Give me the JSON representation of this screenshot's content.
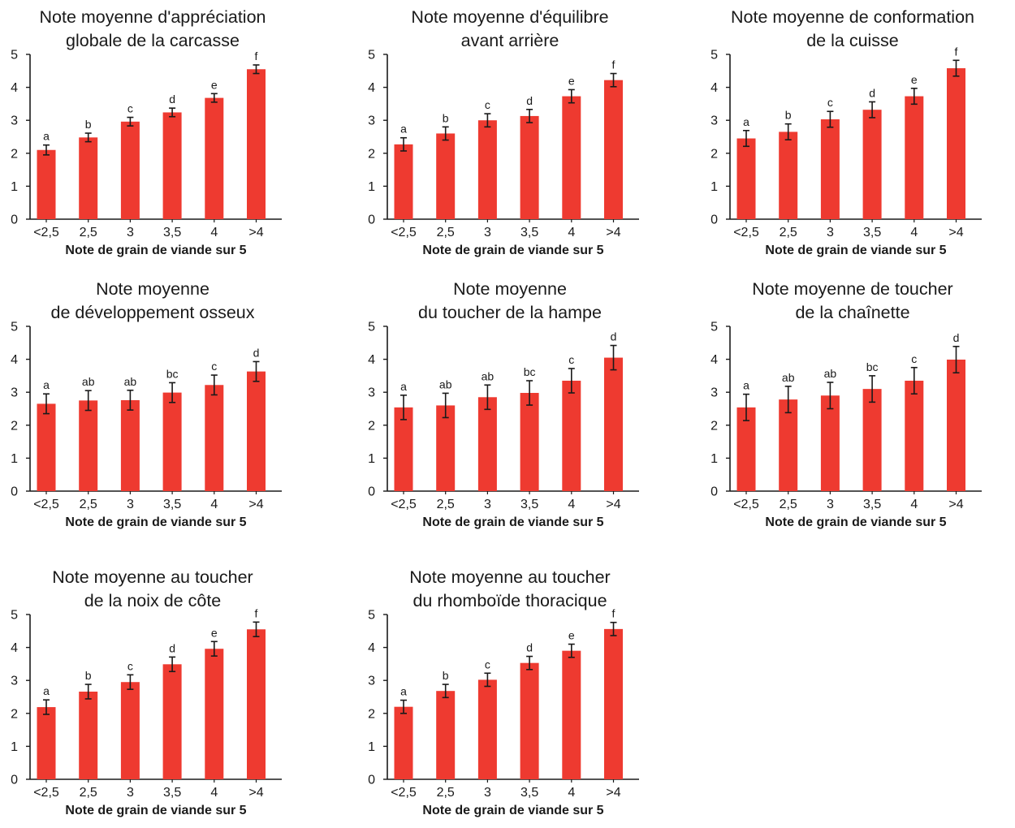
{
  "colors": {
    "bar": "#ee3a30",
    "axis": "#1a1a1a",
    "error_bar": "#1a1a1a"
  },
  "chart_data": [
    {
      "type": "bar",
      "title": [
        "Note moyenne d'appréciation",
        "globale de la carcasse"
      ],
      "categories": [
        "<2,5",
        "2,5",
        "3",
        "3,5",
        "4",
        ">4"
      ],
      "values": [
        2.1,
        2.48,
        2.96,
        3.24,
        3.68,
        4.55
      ],
      "errors": [
        0.15,
        0.13,
        0.13,
        0.13,
        0.13,
        0.13
      ],
      "letters": [
        "a",
        "b",
        "c",
        "d",
        "e",
        "f"
      ],
      "xlabel": "Note de grain de viande sur 5",
      "ylim": [
        0,
        5
      ],
      "yticks": [
        "0",
        "1",
        "2",
        "3",
        "4",
        "5"
      ],
      "grid": false
    },
    {
      "type": "bar",
      "title": [
        "Note moyenne d'équilibre",
        "avant arrière"
      ],
      "categories": [
        "<2,5",
        "2,5",
        "3",
        "3,5",
        "4",
        ">4"
      ],
      "values": [
        2.27,
        2.6,
        3.0,
        3.13,
        3.73,
        4.22
      ],
      "errors": [
        0.2,
        0.2,
        0.2,
        0.2,
        0.2,
        0.2
      ],
      "letters": [
        "a",
        "b",
        "c",
        "d",
        "e",
        "f"
      ],
      "xlabel": "Note de grain de viande sur 5",
      "ylim": [
        0,
        5
      ],
      "yticks": [
        "0",
        "1",
        "2",
        "3",
        "4",
        "5"
      ],
      "grid": false
    },
    {
      "type": "bar",
      "title": [
        "Note moyenne de conformation",
        "de la cuisse"
      ],
      "categories": [
        "<2,5",
        "2,5",
        "3",
        "3,5",
        "4",
        ">4"
      ],
      "values": [
        2.45,
        2.65,
        3.03,
        3.32,
        3.73,
        4.58
      ],
      "errors": [
        0.24,
        0.24,
        0.24,
        0.24,
        0.24,
        0.24
      ],
      "letters": [
        "a",
        "b",
        "c",
        "d",
        "e",
        "f"
      ],
      "xlabel": "Note de grain de viande sur 5",
      "ylim": [
        0,
        5
      ],
      "yticks": [
        "0",
        "1",
        "2",
        "3",
        "4",
        "5"
      ],
      "grid": false
    },
    {
      "type": "bar",
      "title": [
        "Note moyenne",
        "de développement osseux"
      ],
      "categories": [
        "<2,5",
        "2,5",
        "3",
        "3,5",
        "4",
        ">4"
      ],
      "values": [
        2.65,
        2.75,
        2.76,
        2.99,
        3.22,
        3.63
      ],
      "errors": [
        0.3,
        0.3,
        0.3,
        0.3,
        0.3,
        0.3
      ],
      "letters": [
        "a",
        "ab",
        "ab",
        "bc",
        "c",
        "d"
      ],
      "xlabel": "Note de grain de viande sur 5",
      "ylim": [
        0,
        5
      ],
      "yticks": [
        "0",
        "1",
        "2",
        "3",
        "4",
        "5"
      ],
      "grid": false
    },
    {
      "type": "bar",
      "title": [
        "Note moyenne",
        "du toucher de la hampe"
      ],
      "categories": [
        "<2,5",
        "2,5",
        "3",
        "3,5",
        "4",
        ">4"
      ],
      "values": [
        2.54,
        2.6,
        2.85,
        2.98,
        3.35,
        4.05
      ],
      "errors": [
        0.37,
        0.37,
        0.37,
        0.37,
        0.37,
        0.37
      ],
      "letters": [
        "a",
        "ab",
        "ab",
        "bc",
        "c",
        "d"
      ],
      "xlabel": "Note de grain de viande sur 5",
      "ylim": [
        0,
        5
      ],
      "yticks": [
        "0",
        "1",
        "2",
        "3",
        "4",
        "5"
      ],
      "grid": false
    },
    {
      "type": "bar",
      "title": [
        "Note moyenne de toucher",
        "de la chaînette"
      ],
      "categories": [
        "<2,5",
        "2,5",
        "3",
        "3,5",
        "4",
        ">4"
      ],
      "values": [
        2.54,
        2.78,
        2.9,
        3.1,
        3.35,
        3.99
      ],
      "errors": [
        0.4,
        0.4,
        0.4,
        0.4,
        0.4,
        0.4
      ],
      "letters": [
        "a",
        "ab",
        "ab",
        "bc",
        "c",
        "d"
      ],
      "xlabel": "Note de grain de viande sur 5",
      "ylim": [
        0,
        5
      ],
      "yticks": [
        "0",
        "1",
        "2",
        "3",
        "4",
        "5"
      ],
      "grid": false
    },
    {
      "type": "bar",
      "title": [
        "Note moyenne au toucher",
        "de la noix de côte"
      ],
      "categories": [
        "<2,5",
        "2,5",
        "3",
        "3,5",
        "4",
        ">4"
      ],
      "values": [
        2.19,
        2.66,
        2.95,
        3.49,
        3.96,
        4.55
      ],
      "errors": [
        0.22,
        0.22,
        0.22,
        0.22,
        0.22,
        0.22
      ],
      "letters": [
        "a",
        "b",
        "c",
        "d",
        "e",
        "f"
      ],
      "xlabel": "Note de grain de viande sur 5",
      "ylim": [
        0,
        5
      ],
      "yticks": [
        "0",
        "1",
        "2",
        "3",
        "4",
        "5"
      ],
      "grid": false
    },
    {
      "type": "bar",
      "title": [
        "Note moyenne au toucher",
        "du rhomboïde thoracique"
      ],
      "categories": [
        "<2,5",
        "2,5",
        "3",
        "3,5",
        "4",
        ">4"
      ],
      "values": [
        2.2,
        2.68,
        3.02,
        3.53,
        3.9,
        4.56
      ],
      "errors": [
        0.2,
        0.2,
        0.2,
        0.2,
        0.2,
        0.2
      ],
      "letters": [
        "a",
        "b",
        "c",
        "d",
        "e",
        "f"
      ],
      "xlabel": "Note de grain de viande sur 5",
      "ylim": [
        0,
        5
      ],
      "yticks": [
        "0",
        "1",
        "2",
        "3",
        "4",
        "5"
      ],
      "grid": false
    }
  ]
}
